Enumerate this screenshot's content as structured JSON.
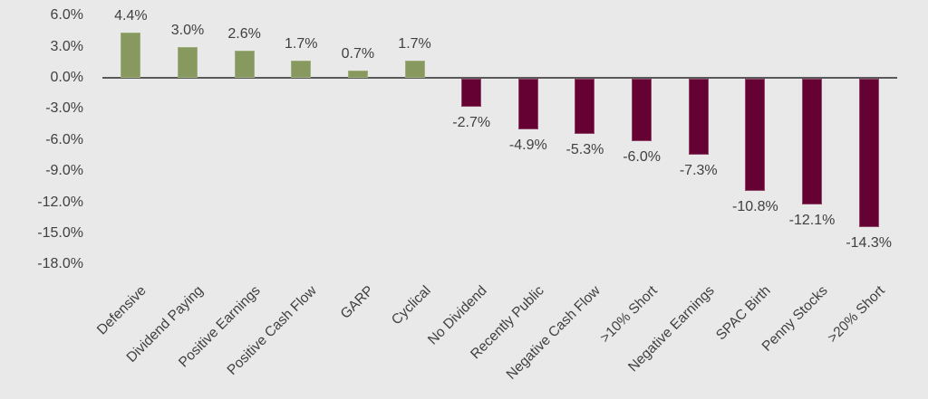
{
  "chart_data": {
    "type": "bar",
    "categories": [
      "Defensive",
      "Dividend Paying",
      "Positive Earnings",
      "Positive Cash Flow",
      "GARP",
      "Cyclical",
      "No Dividend",
      "Recently Public",
      "Negative Cash Flow",
      ">10% Short",
      "Negative Earnings",
      "SPAC Birth",
      "Penny Stocks",
      ">20% Short"
    ],
    "values": [
      4.4,
      3.0,
      2.6,
      1.7,
      0.7,
      1.7,
      -2.7,
      -4.9,
      -5.3,
      -6.0,
      -7.3,
      -10.8,
      -12.1,
      -14.3
    ],
    "labels": [
      "4.4%",
      "3.0%",
      "2.6%",
      "1.7%",
      "0.7%",
      "1.7%",
      "-2.7%",
      "-4.9%",
      "-5.3%",
      "-6.0%",
      "-7.3%",
      "-10.8%",
      "-12.1%",
      "-14.3%"
    ],
    "y_ticks": [
      "6.0%",
      "3.0%",
      "0.0%",
      "-3.0%",
      "-6.0%",
      "-9.0%",
      "-12.0%",
      "-15.0%",
      "-18.0%"
    ],
    "y_tick_values": [
      6,
      3,
      0,
      -3,
      -6,
      -9,
      -12,
      -15,
      -18
    ],
    "ylim": [
      -18,
      6
    ],
    "title": "",
    "xlabel": "",
    "ylabel": "",
    "grid": false,
    "legend_position": "none",
    "x_label_rotation_deg": 45,
    "positive_color": "#87995f",
    "negative_color": "#660134",
    "positive_border_color": "#9fae7d",
    "negative_border_color": "#8c4566",
    "background_color": "#e9e9e9",
    "axis_color": "#595959",
    "text_color": "#404040"
  }
}
